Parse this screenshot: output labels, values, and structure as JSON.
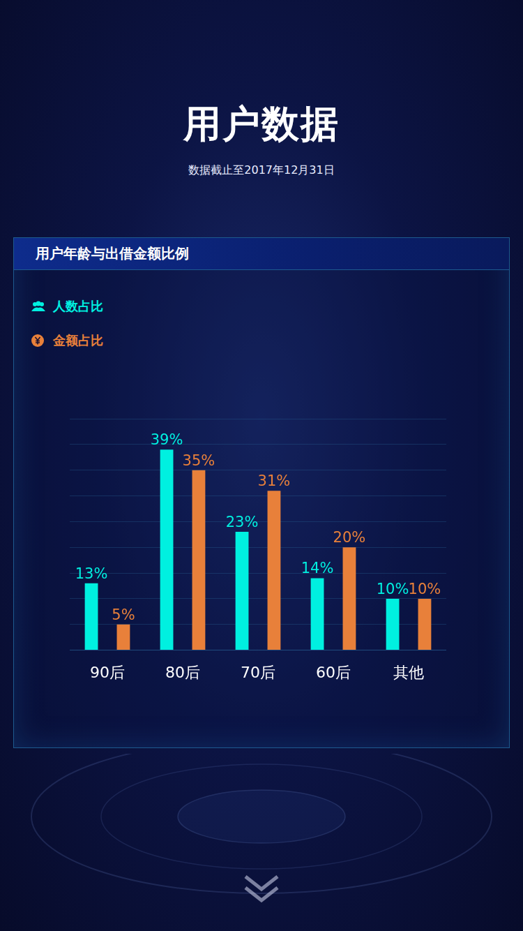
{
  "title": "用户数据",
  "subtitle": "数据截止至2017年12月31日",
  "chart_data": {
    "type": "bar",
    "title": "用户年龄与出借金额比例",
    "categories": [
      "90后",
      "80后",
      "70后",
      "60后",
      "其他"
    ],
    "series": [
      {
        "name": "人数占比",
        "color": "#00f0e0",
        "values": [
          13,
          39,
          23,
          14,
          10
        ],
        "value_labels": [
          "13%",
          "39%",
          "23%",
          "14%",
          "10%"
        ]
      },
      {
        "name": "金额占比",
        "color": "#e8803a",
        "values": [
          5,
          35,
          31,
          20,
          10
        ],
        "value_labels": [
          "5%",
          "35%",
          "31%",
          "20%",
          "10%"
        ]
      }
    ],
    "ylim": [
      0,
      45
    ],
    "yticks": [
      0,
      5,
      10,
      15,
      20,
      25,
      30,
      35,
      40,
      45
    ],
    "grid": true,
    "legend": "top-left",
    "data_labels": true,
    "tick_labels": "x"
  }
}
